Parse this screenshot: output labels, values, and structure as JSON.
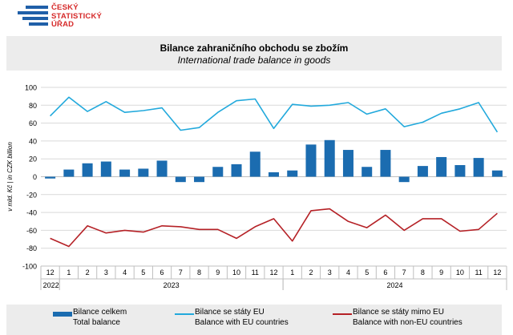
{
  "logo": {
    "line1": "ČESKÝ",
    "line2": "STATISTICKÝ",
    "line3": "ÚŘAD"
  },
  "colors": {
    "total": "#1b6cb0",
    "eu": "#22a9dc",
    "non_eu": "#b52126",
    "grid": "#d9d9d9"
  },
  "chart_data": {
    "type": "bar+line",
    "title": "Bilance zahraničního obchodu se zbožím",
    "subtitle": "International trade balance in goods",
    "ylabel": "v mld. Kč | in CZK billion",
    "ylim": [
      -100,
      100
    ],
    "yticks": [
      100,
      80,
      60,
      40,
      20,
      0,
      -20,
      -40,
      -60,
      -80,
      -100
    ],
    "categories": [
      "12",
      "1",
      "2",
      "3",
      "4",
      "5",
      "6",
      "7",
      "8",
      "9",
      "10",
      "11",
      "12",
      "1",
      "2",
      "3",
      "4",
      "5",
      "6",
      "7",
      "8",
      "9",
      "10",
      "11",
      "12"
    ],
    "year_groups": [
      {
        "label": "2022",
        "start": 0,
        "end": 0
      },
      {
        "label": "2023",
        "start": 1,
        "end": 12
      },
      {
        "label": "2024",
        "start": 13,
        "end": 24
      }
    ],
    "series": [
      {
        "name": "Bilance celkem",
        "name_en": "Total balance",
        "kind": "bar",
        "values": [
          -2,
          8,
          15,
          17,
          8,
          9,
          18,
          -6,
          -6,
          11,
          14,
          28,
          5,
          7,
          36,
          41,
          30,
          11,
          30,
          -6,
          12,
          22,
          13,
          21,
          7
        ]
      },
      {
        "name": "Bilance se státy EU",
        "name_en": "Balance with EU countries",
        "kind": "line",
        "values": [
          68,
          89,
          73,
          84,
          72,
          74,
          77,
          52,
          55,
          72,
          85,
          87,
          54,
          81,
          79,
          80,
          83,
          70,
          76,
          56,
          61,
          71,
          76,
          83,
          50
        ]
      },
      {
        "name": "Bilance se státy mimo EU",
        "name_en": "Balance with non-EU countries",
        "kind": "line",
        "values": [
          -69,
          -78,
          -55,
          -63,
          -60,
          -62,
          -55,
          -56,
          -59,
          -59,
          -69,
          -56,
          -47,
          -72,
          -38,
          -36,
          -50,
          -57,
          -43,
          -60,
          -47,
          -47,
          -61,
          -59,
          -41
        ]
      }
    ]
  }
}
